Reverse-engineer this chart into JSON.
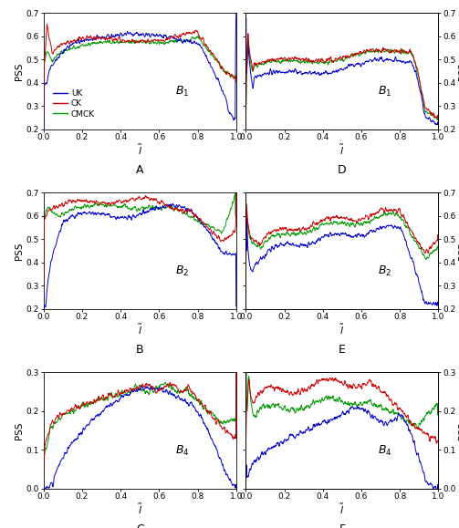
{
  "colors": {
    "UK": "#0000cc",
    "CK": "#cc0000",
    "CMCK": "#009900"
  },
  "linewidth": 0.7,
  "panels": {
    "A": {
      "label": "A",
      "band": "B_1",
      "ylim": [
        0.2,
        0.7
      ],
      "yticks": [
        0.2,
        0.3,
        0.4,
        0.5,
        0.6,
        0.7
      ],
      "ylabel_left": true,
      "ylabel_right": false,
      "show_legend": true,
      "row": 0,
      "col": 0
    },
    "D": {
      "label": "D",
      "band": "B_1",
      "ylim": [
        0.2,
        0.7
      ],
      "yticks": [
        0.2,
        0.3,
        0.4,
        0.5,
        0.6,
        0.7
      ],
      "ylabel_left": false,
      "ylabel_right": true,
      "show_legend": false,
      "row": 0,
      "col": 1
    },
    "B": {
      "label": "B",
      "band": "B_2",
      "ylim": [
        0.2,
        0.7
      ],
      "yticks": [
        0.2,
        0.3,
        0.4,
        0.5,
        0.6,
        0.7
      ],
      "ylabel_left": true,
      "ylabel_right": false,
      "show_legend": false,
      "row": 1,
      "col": 0
    },
    "E": {
      "label": "E",
      "band": "B_2",
      "ylim": [
        0.2,
        0.7
      ],
      "yticks": [
        0.2,
        0.3,
        0.4,
        0.5,
        0.6,
        0.7
      ],
      "ylabel_left": false,
      "ylabel_right": true,
      "show_legend": false,
      "row": 1,
      "col": 1
    },
    "C": {
      "label": "C",
      "band": "B_4",
      "ylim": [
        0.0,
        0.3
      ],
      "yticks": [
        0.0,
        0.1,
        0.2,
        0.3
      ],
      "ylabel_left": true,
      "ylabel_right": false,
      "show_legend": false,
      "row": 2,
      "col": 0
    },
    "F": {
      "label": "F",
      "band": "B_4",
      "ylim": [
        0.0,
        0.3
      ],
      "yticks": [
        0.0,
        0.1,
        0.2,
        0.3
      ],
      "ylabel_left": false,
      "ylabel_right": true,
      "show_legend": false,
      "row": 2,
      "col": 1
    }
  },
  "xticks": [
    0.0,
    0.2,
    0.4,
    0.6,
    0.8,
    1.0
  ],
  "xlim": [
    0.0,
    1.0
  ]
}
